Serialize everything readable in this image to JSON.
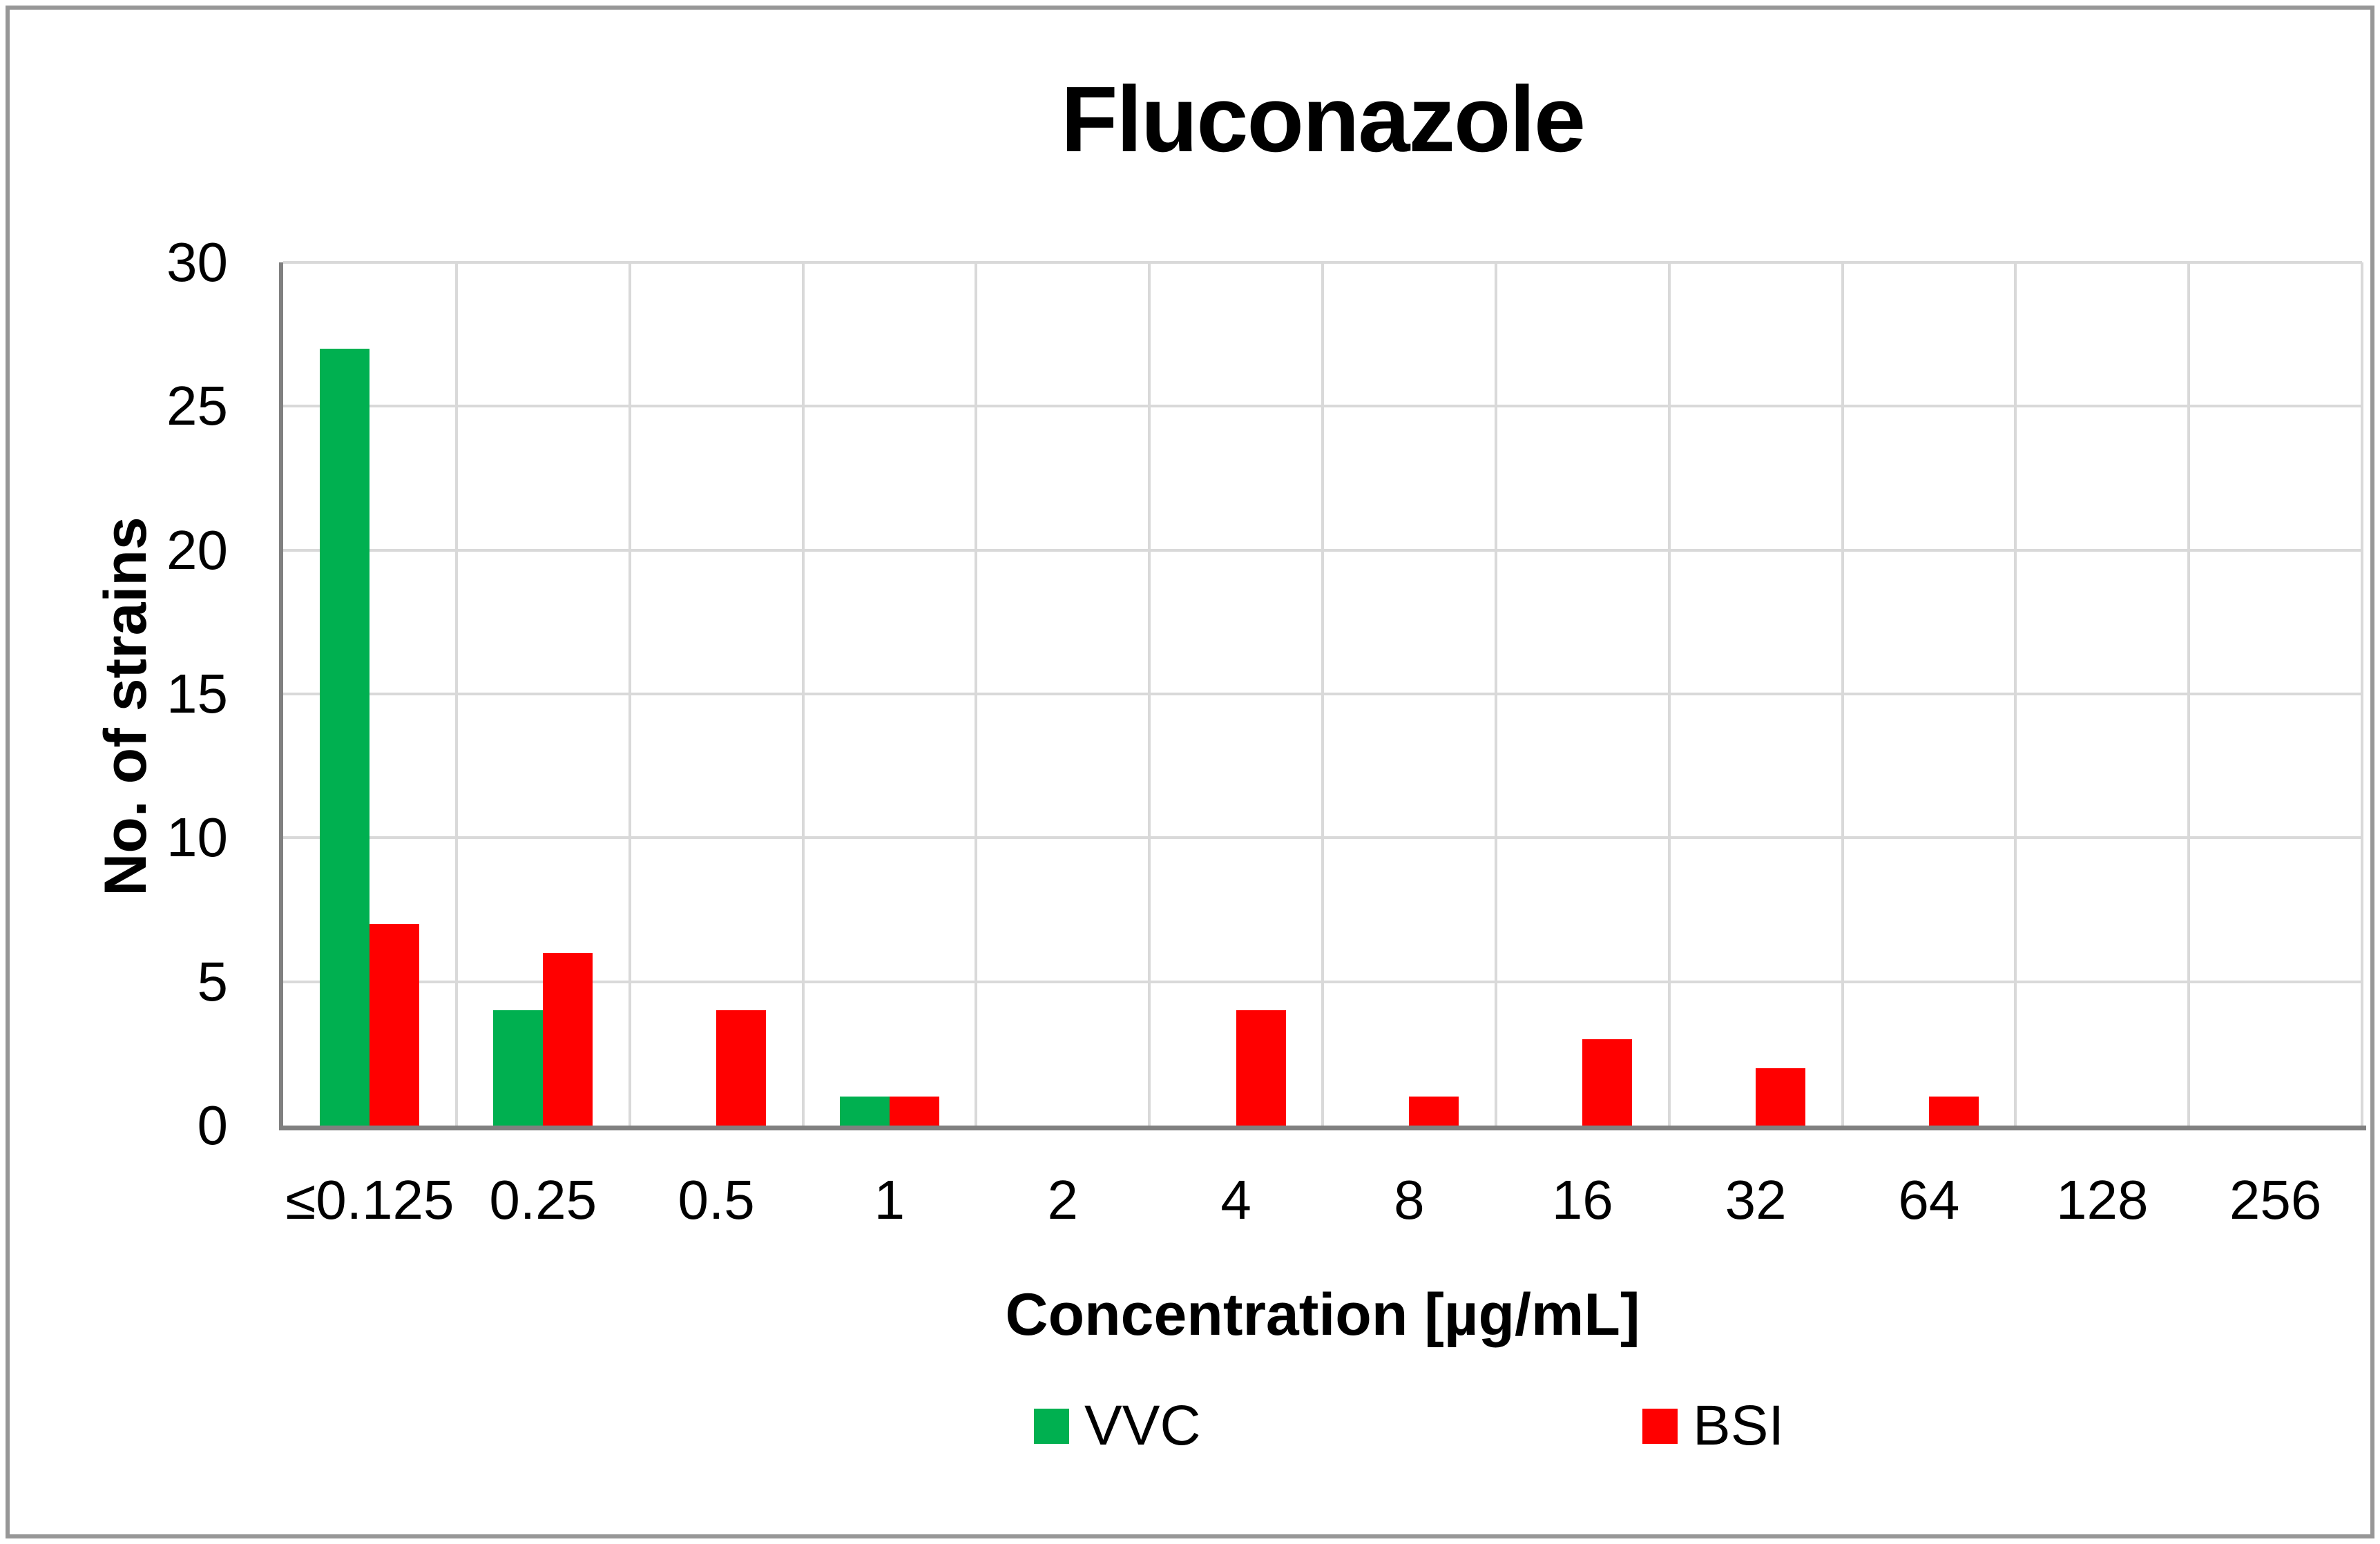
{
  "chart_data": {
    "type": "bar",
    "title": "Fluconazole",
    "xlabel": "Concentration [µg/mL]",
    "ylabel": "No. of strains",
    "categories": [
      "≤0.125",
      "0.25",
      "0.5",
      "1",
      "2",
      "4",
      "8",
      "16",
      "32",
      "64",
      "128",
      "256"
    ],
    "series": [
      {
        "name": "VVC",
        "color": "#00B050",
        "values": [
          27,
          4,
          0,
          1,
          0,
          0,
          0,
          0,
          0,
          0,
          0,
          0
        ]
      },
      {
        "name": "BSI",
        "color": "#FF0000",
        "values": [
          7,
          6,
          4,
          1,
          0,
          4,
          1,
          3,
          2,
          1,
          0,
          0
        ]
      }
    ],
    "ylim": [
      0,
      30
    ],
    "ytick_step": 5,
    "yticks": [
      0,
      5,
      10,
      15,
      20,
      25,
      30
    ],
    "grid": "both",
    "gridline_color": "#D9D9D9",
    "axis_color": "#808080",
    "frame_color": "#979797",
    "legend_position": "bottom"
  }
}
